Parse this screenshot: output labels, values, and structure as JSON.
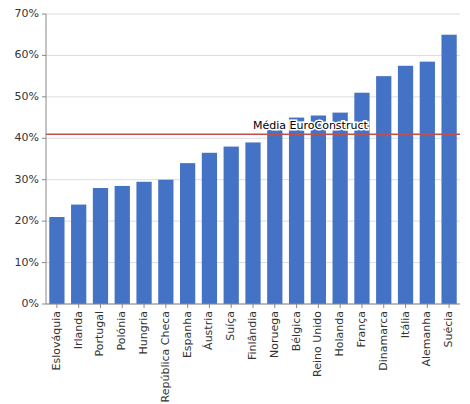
{
  "chart_data": {
    "type": "bar",
    "categories": [
      "Eslováquia",
      "Irlanda",
      "Portugal",
      "Polónia",
      "Hungria",
      "República Checa",
      "Espanha",
      "Áustria",
      "Suíça",
      "Finlândia",
      "Noruega",
      "Bélgica",
      "Reino Unido",
      "Holanda",
      "França",
      "Dinamarca",
      "Itália",
      "Alemanha",
      "Suécia"
    ],
    "values": [
      0.21,
      0.24,
      0.28,
      0.285,
      0.295,
      0.3,
      0.34,
      0.365,
      0.38,
      0.39,
      0.42,
      0.45,
      0.455,
      0.462,
      0.51,
      0.55,
      0.575,
      0.585,
      0.65
    ],
    "color": "#4472C4",
    "reference_line": {
      "value": 0.41,
      "label": "Média EuroConstruct",
      "color": "#C0504D"
    },
    "ylim": [
      0.0,
      0.7
    ],
    "yticks": [
      {
        "value": 0.0,
        "label": "0%"
      },
      {
        "value": 0.1,
        "label": "10%"
      },
      {
        "value": 0.2,
        "label": "20%"
      },
      {
        "value": 0.3,
        "label": "30%"
      },
      {
        "value": 0.4,
        "label": "40%"
      },
      {
        "value": 0.5,
        "label": "50%"
      },
      {
        "value": 0.6,
        "label": "60%"
      },
      {
        "value": 0.7,
        "label": "70%"
      }
    ],
    "grid": true
  }
}
